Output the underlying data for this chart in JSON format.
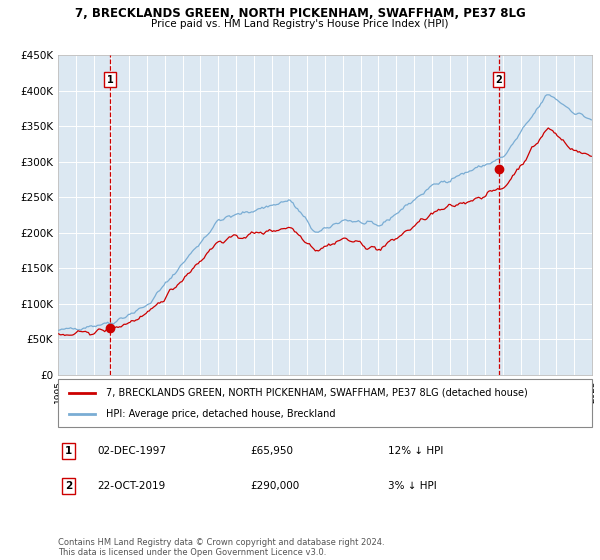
{
  "title": "7, BRECKLANDS GREEN, NORTH PICKENHAM, SWAFFHAM, PE37 8LG",
  "subtitle": "Price paid vs. HM Land Registry's House Price Index (HPI)",
  "sale1_date": "02-DEC-1997",
  "sale1_price": 65950,
  "sale1_label": "1",
  "sale1_hpi_pct": "12% ↓ HPI",
  "sale2_date": "22-OCT-2019",
  "sale2_price": 290000,
  "sale2_label": "2",
  "sale2_hpi_pct": "3% ↓ HPI",
  "legend_property": "7, BRECKLANDS GREEN, NORTH PICKENHAM, SWAFFHAM, PE37 8LG (detached house)",
  "legend_hpi": "HPI: Average price, detached house, Breckland",
  "footer": "Contains HM Land Registry data © Crown copyright and database right 2024.\nThis data is licensed under the Open Government Licence v3.0.",
  "hpi_color": "#7aadd4",
  "property_color": "#cc0000",
  "vline_color": "#cc0000",
  "bg_color": "#dce8f2",
  "grid_color": "#ffffff",
  "ylim_min": 0,
  "ylim_max": 450000,
  "yticks": [
    0,
    50000,
    100000,
    150000,
    200000,
    250000,
    300000,
    350000,
    400000,
    450000
  ],
  "ytick_labels": [
    "£0",
    "£50K",
    "£100K",
    "£150K",
    "£200K",
    "£250K",
    "£300K",
    "£350K",
    "£400K",
    "£450K"
  ]
}
